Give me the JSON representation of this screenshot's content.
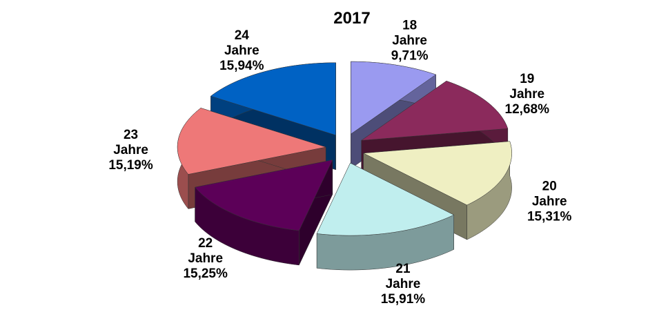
{
  "chart_data": {
    "type": "pie3d",
    "title": "2017",
    "categories": [
      "18 Jahre",
      "19 Jahre",
      "20 Jahre",
      "21 Jahre",
      "22 Jahre",
      "23 Jahre",
      "24 Jahre"
    ],
    "values": [
      9.71,
      12.68,
      15.31,
      15.91,
      15.25,
      15.19,
      15.94
    ],
    "value_labels": [
      "9,71%",
      "12,68%",
      "15,31%",
      "15,91%",
      "15,25%",
      "15,19%",
      "15,94%"
    ],
    "colors": [
      "#9a9af0",
      "#8b2a5c",
      "#efefc2",
      "#c0eeee",
      "#5c0058",
      "#ee7878",
      "#0062c4"
    ]
  }
}
